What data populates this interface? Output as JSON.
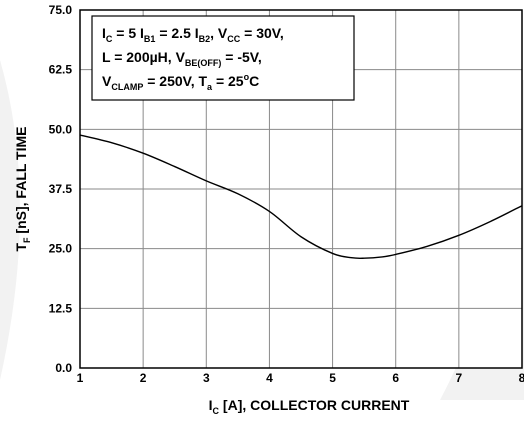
{
  "chart_data": {
    "type": "line",
    "xlabel": {
      "main": "I",
      "sub": "C",
      "rest": " [A], COLLECTOR CURRENT"
    },
    "ylabel": {
      "main": "T",
      "sub": "F",
      "rest": " [nS], FALL TIME"
    },
    "xlim": [
      1,
      8
    ],
    "ylim": [
      0,
      75
    ],
    "x_ticks": [
      "1",
      "2",
      "3",
      "4",
      "5",
      "6",
      "7",
      "8"
    ],
    "y_ticks": [
      "0.0",
      "12.5",
      "25.0",
      "37.5",
      "50.0",
      "62.5",
      "75.0"
    ],
    "grid": true,
    "series": [
      {
        "x": [
          1.0,
          1.5,
          2.0,
          2.5,
          3.0,
          3.5,
          4.0,
          4.5,
          5.0,
          5.3,
          5.5,
          5.8,
          6.0,
          6.5,
          7.0,
          7.5,
          8.0
        ],
        "y": [
          48.8,
          47.2,
          45.0,
          42.2,
          39.2,
          36.5,
          32.8,
          27.5,
          24.0,
          23.1,
          23.0,
          23.3,
          23.8,
          25.5,
          27.8,
          30.7,
          34.0
        ]
      }
    ],
    "annotation": [
      [
        {
          "t": "I"
        },
        {
          "t": "C",
          "s": "sub"
        },
        {
          "t": " = 5 I"
        },
        {
          "t": "B1",
          "s": "sub"
        },
        {
          "t": " = 2.5 I"
        },
        {
          "t": "B2",
          "s": "sub"
        },
        {
          "t": ", V"
        },
        {
          "t": "CC",
          "s": "sub"
        },
        {
          "t": " = 30V,"
        }
      ],
      [
        {
          "t": "L = 200µH, V"
        },
        {
          "t": "BE(OFF)",
          "s": "sub"
        },
        {
          "t": " = -5V,"
        }
      ],
      [
        {
          "t": "V"
        },
        {
          "t": "CLAMP",
          "s": "sub"
        },
        {
          "t": " = 250V, T"
        },
        {
          "t": "a",
          "s": "sub"
        },
        {
          "t": " = 25"
        },
        {
          "t": "o",
          "s": "sup"
        },
        {
          "t": "C"
        }
      ]
    ]
  }
}
